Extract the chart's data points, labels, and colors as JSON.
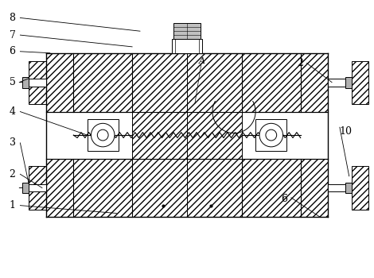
{
  "bg_color": "#ffffff",
  "lc": "#000000",
  "fig_width": 4.7,
  "fig_height": 3.5,
  "dpi": 100,
  "fs": 9
}
